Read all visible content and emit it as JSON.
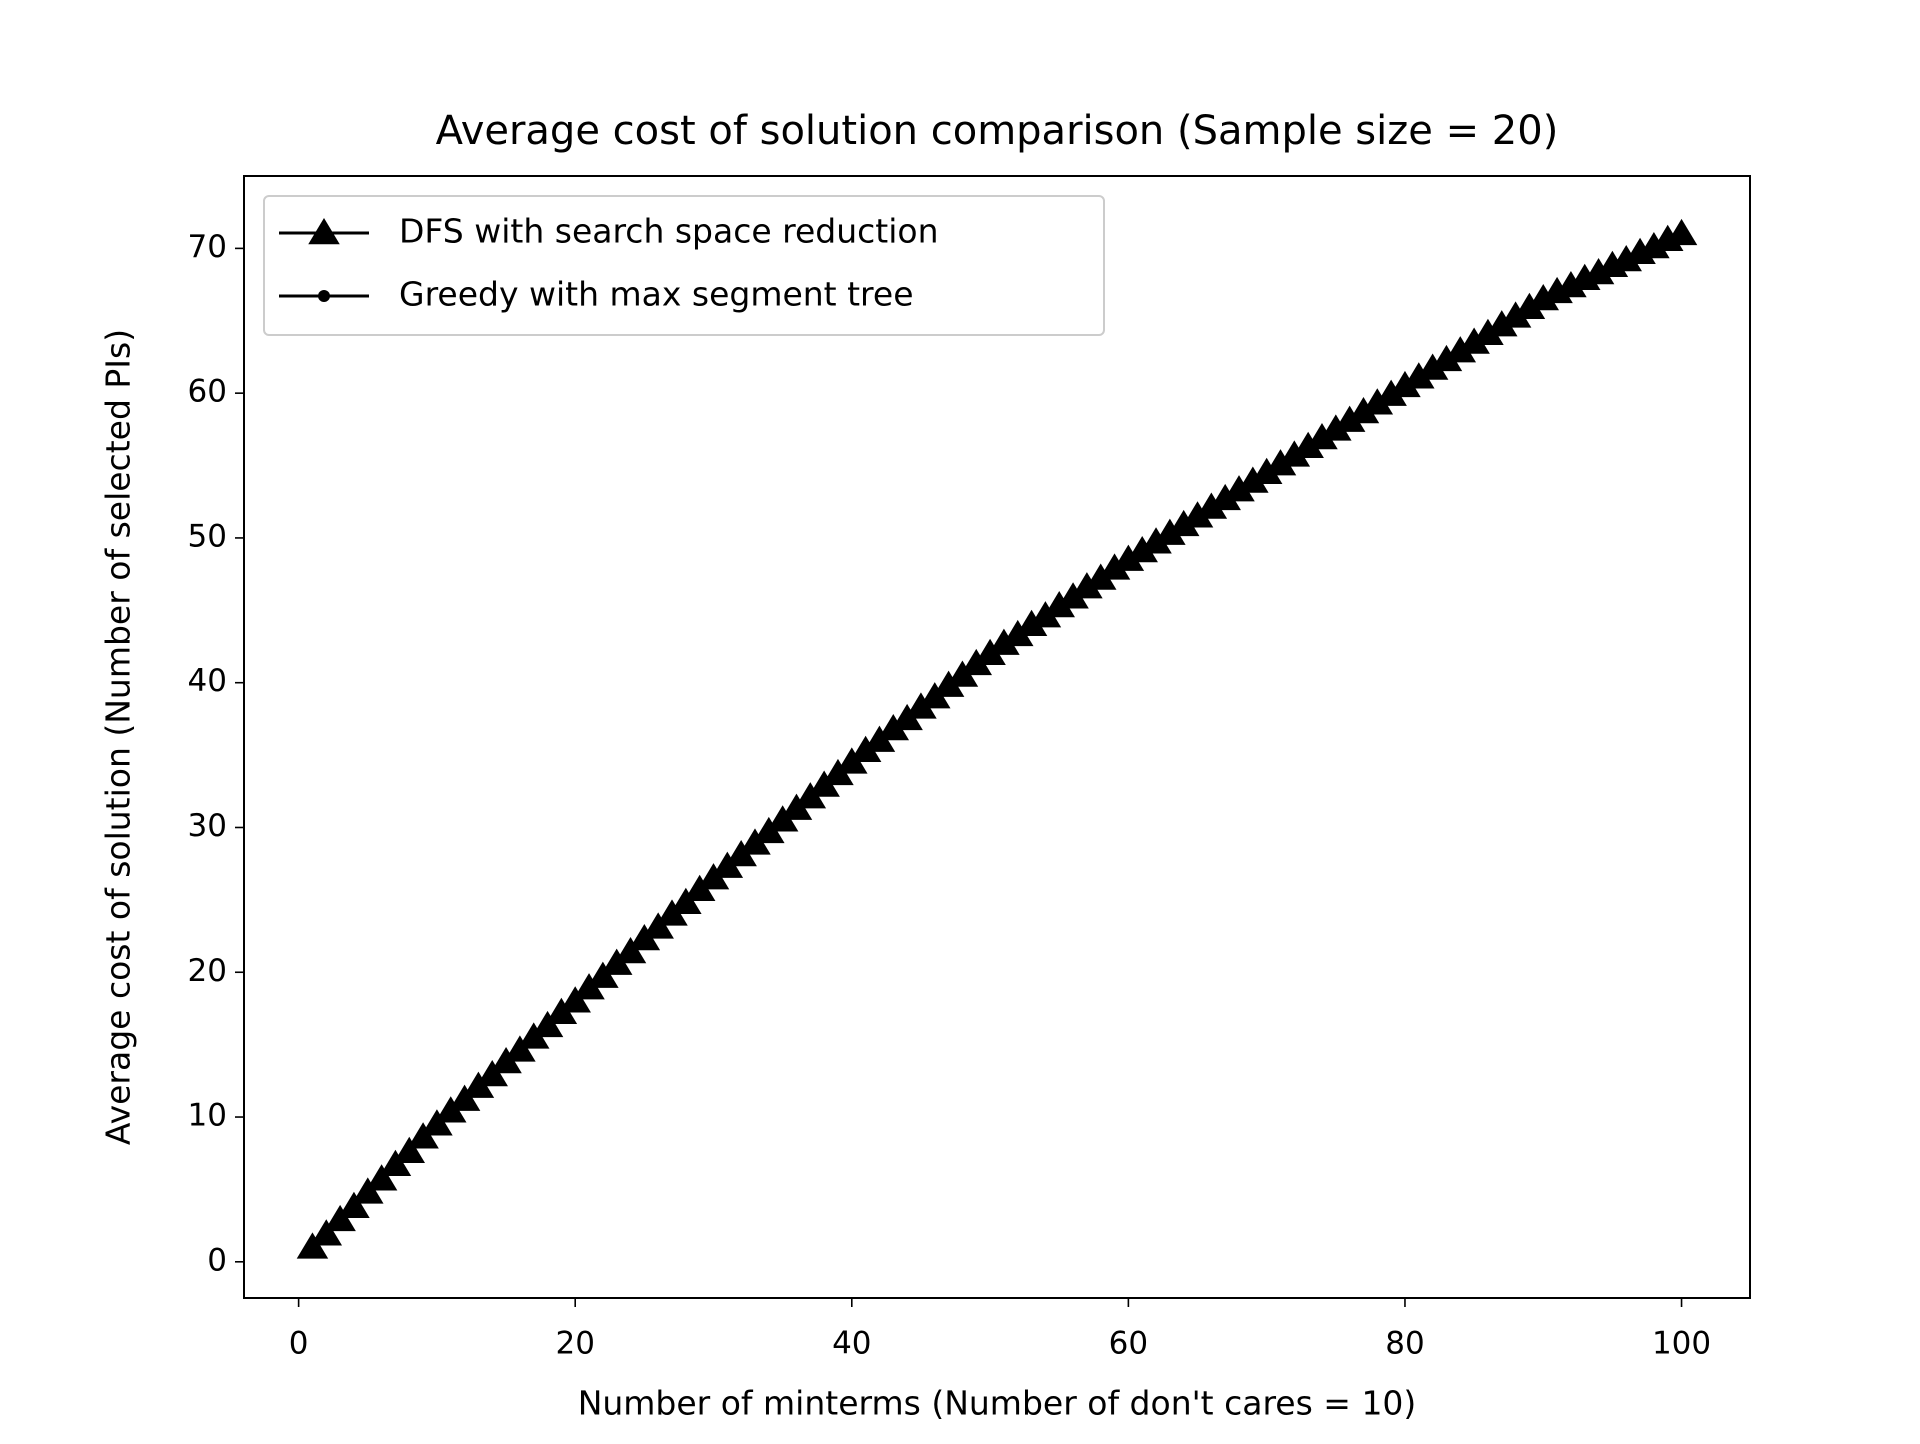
{
  "chart_data": {
    "type": "line",
    "title": "Average cost of solution comparison (Sample size = 20)",
    "xlabel": "Number of minterms (Number of don't cares = 10)",
    "ylabel": "Average cost of solution (Number of selected PIs)",
    "x": [
      1,
      2,
      3,
      4,
      5,
      6,
      7,
      8,
      9,
      10,
      11,
      12,
      13,
      14,
      15,
      16,
      17,
      18,
      19,
      20,
      21,
      22,
      23,
      24,
      25,
      26,
      27,
      28,
      29,
      30,
      31,
      32,
      33,
      34,
      35,
      36,
      37,
      38,
      39,
      40,
      41,
      42,
      43,
      44,
      45,
      46,
      47,
      48,
      49,
      50,
      51,
      52,
      53,
      54,
      55,
      56,
      57,
      58,
      59,
      60,
      61,
      62,
      63,
      64,
      65,
      66,
      67,
      68,
      69,
      70,
      71,
      72,
      73,
      74,
      75,
      76,
      77,
      78,
      79,
      80,
      81,
      82,
      83,
      84,
      85,
      86,
      87,
      88,
      89,
      90,
      91,
      92,
      93,
      94,
      95,
      96,
      97,
      98,
      99,
      100
    ],
    "series": [
      {
        "name": "DFS with search space reduction",
        "color": "#000000",
        "marker": "triangle",
        "values": [
          1.0,
          1.9,
          2.9,
          3.8,
          4.8,
          5.7,
          6.7,
          7.6,
          8.6,
          9.5,
          10.4,
          11.2,
          12.1,
          12.9,
          13.8,
          14.6,
          15.5,
          16.3,
          17.2,
          18.0,
          18.9,
          19.7,
          20.6,
          21.4,
          22.3,
          23.1,
          24.0,
          24.8,
          25.7,
          26.5,
          27.3,
          28.1,
          28.9,
          29.7,
          30.5,
          31.3,
          32.1,
          32.9,
          33.7,
          34.5,
          35.3,
          36.0,
          36.8,
          37.5,
          38.3,
          39.0,
          39.8,
          40.5,
          41.3,
          42.0,
          42.7,
          43.3,
          44.0,
          44.6,
          45.3,
          45.9,
          46.6,
          47.2,
          47.9,
          48.5,
          49.1,
          49.7,
          50.3,
          50.9,
          51.5,
          52.1,
          52.7,
          53.3,
          53.9,
          54.5,
          55.1,
          55.7,
          56.3,
          56.9,
          57.5,
          58.1,
          58.7,
          59.3,
          59.9,
          60.5,
          61.1,
          61.7,
          62.3,
          62.9,
          63.5,
          64.1,
          64.7,
          65.3,
          65.9,
          66.5,
          67.0,
          67.4,
          67.9,
          68.3,
          68.8,
          69.2,
          69.7,
          70.1,
          70.6,
          71.0
        ]
      },
      {
        "name": "Greedy with max segment tree",
        "color": "#000000",
        "marker": "circle",
        "values": [
          1.0,
          1.9,
          2.9,
          3.8,
          4.8,
          5.7,
          6.7,
          7.6,
          8.6,
          9.5,
          10.4,
          11.2,
          12.1,
          12.9,
          13.8,
          14.6,
          15.5,
          16.3,
          17.2,
          18.0,
          18.9,
          19.7,
          20.6,
          21.4,
          22.3,
          23.1,
          24.0,
          24.8,
          25.7,
          26.5,
          27.3,
          28.1,
          28.9,
          29.7,
          30.5,
          31.3,
          32.1,
          32.9,
          33.7,
          34.5,
          35.3,
          36.0,
          36.8,
          37.5,
          38.3,
          39.0,
          39.8,
          40.5,
          41.3,
          42.0,
          42.7,
          43.3,
          44.0,
          44.6,
          45.3,
          45.9,
          46.6,
          47.2,
          47.9,
          48.5,
          49.1,
          49.7,
          50.3,
          50.9,
          51.5,
          52.1,
          52.7,
          53.3,
          53.9,
          54.5,
          55.1,
          55.7,
          56.3,
          56.9,
          57.5,
          58.1,
          58.7,
          59.3,
          59.9,
          60.5,
          61.1,
          61.7,
          62.3,
          62.9,
          63.5,
          64.1,
          64.7,
          65.3,
          65.9,
          66.5,
          67.0,
          67.4,
          67.9,
          68.3,
          68.8,
          69.2,
          69.7,
          70.1,
          70.6,
          71.0
        ]
      }
    ],
    "xlim": [
      -3.95,
      104.95
    ],
    "xticks": [
      0,
      20,
      40,
      60,
      80,
      100
    ],
    "ylim": [
      -2.5,
      75
    ],
    "yticks": [
      0,
      10,
      20,
      30,
      40,
      50,
      60,
      70
    ],
    "grid": false,
    "legend": "upper left"
  }
}
